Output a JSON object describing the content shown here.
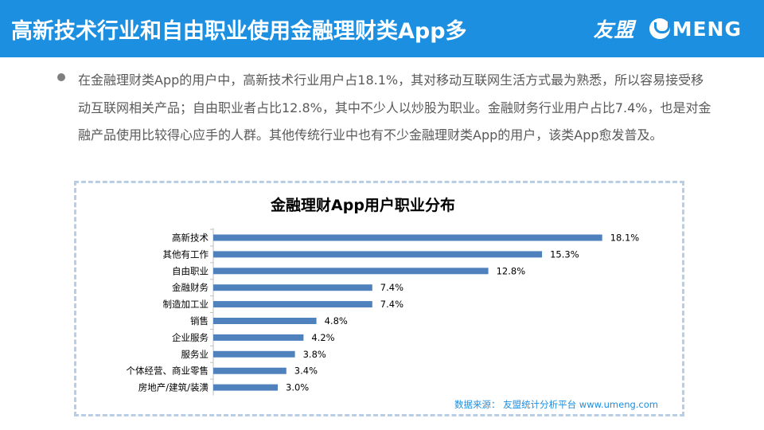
{
  "header": {
    "title": "高新技术行业和自由职业使用金融理财类App多"
  },
  "logo": {
    "cn": "友盟",
    "en": "MENG",
    "mark_icon": "umeng-u-icon"
  },
  "paragraph": "在金融理财类App的用户中，高新技术行业用户占18.1%，其对移动互联网生活方式最为熟悉，所以容易接受移动互联网相关产品；自由职业者占比12.8%，其中不少人以炒股为职业。金融财务行业用户占比7.4%，也是对金融产品使用比较得心应手的人群。其他传统行业中也有不少金融理财类App的用户，该类App愈发普及。",
  "source": "数据来源： 友盟统计分析平台 www.umeng.com",
  "colors": {
    "header": "#1d8fe0",
    "bar": "#4f81bd",
    "frame": "#b9cde4"
  },
  "chart_data": {
    "type": "bar",
    "orientation": "horizontal",
    "title": "金融理财App用户职业分布",
    "categories": [
      "高新技术",
      "其他有工作",
      "自由职业",
      "金融财务",
      "制造加工业",
      "销售",
      "企业服务",
      "服务业",
      "个体经营、商业零售",
      "房地产/建筑/装潢"
    ],
    "values": [
      18.1,
      15.3,
      12.8,
      7.4,
      7.4,
      4.8,
      4.2,
      3.8,
      3.4,
      3.0
    ],
    "labels": [
      "18.1%",
      "15.3%",
      "12.8%",
      "7.4%",
      "7.4%",
      "4.8%",
      "4.2%",
      "3.8%",
      "3.4%",
      "3.0%"
    ],
    "xlim": [
      0,
      20
    ],
    "grid": false,
    "legend": "none"
  }
}
